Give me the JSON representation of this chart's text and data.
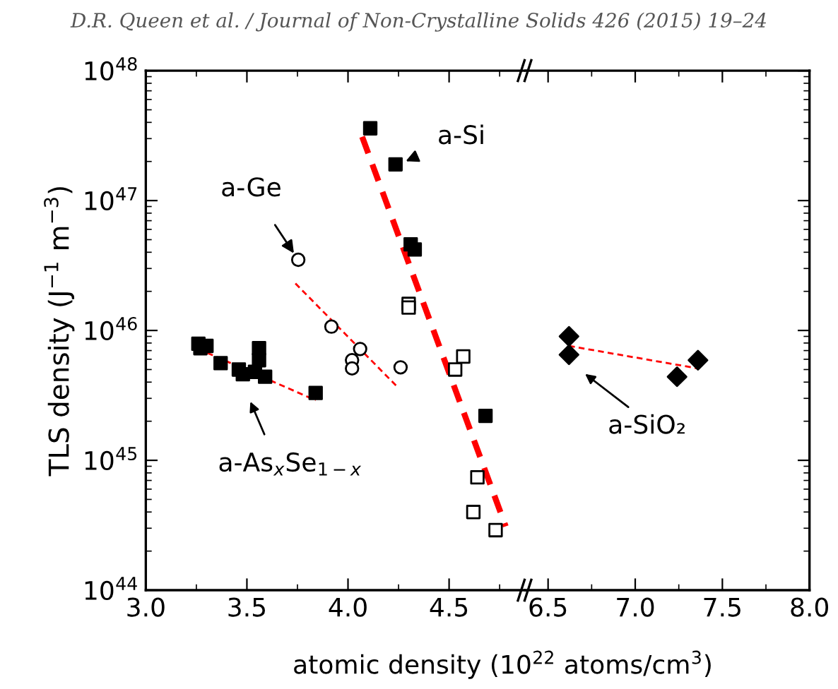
{
  "chart_data": [
    {
      "type": "scatter",
      "log": true,
      "ylabel": "TLS density (J$^{−1}$ m$^{−3}$)",
      "xlabel": "atomic density (10$^{22}$ atoms/cm$^{3}$)",
      "xlim": [
        3.0,
        4.88
      ],
      "xticks": [
        {
          "value": 3.0,
          "label": "3.0"
        },
        3.5,
        {
          "value": 4.0,
          "label": "4.0"
        },
        4.5
      ],
      "ylim": [
        1e+44,
        1e+48
      ],
      "yticks": [
        {
          "value": 1e+44,
          "label": "10$^{44}$"
        },
        {
          "value": 1e+45,
          "label": "10$^{45}$"
        },
        {
          "value": 1e+46,
          "label": "10$^{46}$"
        },
        {
          "value": 1e+47,
          "label": "10$^{47}$"
        },
        {
          "value": 1e+48,
          "label": "10$^{48}$"
        }
      ],
      "series": [
        {
          "marker": "square",
          "color": "#000000",
          "x": [
            4.11,
            4.235,
            4.31,
            4.33,
            4.68
          ],
          "values": [
            3.6e+47,
            1.9e+47,
            4.6e+46,
            4.2e+46,
            2.2e+45
          ]
        },
        {
          "marker": "square",
          "color": "#ffffff",
          "x": [
            4.3,
            4.3,
            4.53,
            4.57,
            4.64,
            4.62,
            4.73
          ],
          "values": [
            1.6e+46,
            1.5e+46,
            5e+45,
            6.3e+45,
            7.4e+44,
            4e+44,
            2.9e+44
          ]
        },
        {
          "marker": "circle",
          "color": "#ffffff",
          "x": [
            3.754,
            3.918,
            4.06,
            4.02,
            4.02,
            4.26
          ],
          "values": [
            3.5e+46,
            1.07e+46,
            7.2e+45,
            5.9e+45,
            5.1e+45,
            5.2e+45
          ]
        },
        {
          "marker": "square",
          "color": "#000000",
          "x": [
            3.26,
            3.27,
            3.3,
            3.37,
            3.46,
            3.48,
            3.56,
            3.56,
            3.54,
            3.59,
            3.84
          ],
          "values": [
            7.9e+45,
            7.3e+45,
            7.6e+45,
            5.6e+45,
            5e+45,
            4.6e+45,
            7.3e+45,
            5.9e+45,
            4.8e+45,
            4.4e+45,
            3.3e+45
          ]
        },
        {
          "type": "line",
          "line_style": "dashed",
          "color": "#ff0000",
          "x": [
            4.07,
            4.78
          ],
          "values": [
            3.1e+47,
            3.1e+44
          ]
        },
        {
          "type": "line",
          "line_style": "dashed",
          "color": "#ff0000",
          "x": [
            3.74,
            4.25
          ],
          "values": [
            2.3e+46,
            3.6e+45
          ]
        },
        {
          "type": "line",
          "line_style": "dashed",
          "color": "#ff0000",
          "x": [
            3.26,
            3.84
          ],
          "values": [
            7.2e+45,
            2.9e+45
          ]
        }
      ],
      "annotations": [
        "D.R. Queen et al. / Journal of Non-Crystalline Solids 426 (2015) 19–24",
        {
          "text": "a-Si",
          "x": 4.25,
          "y": 1.9e+47
        },
        {
          "text": "a-Ge",
          "x": 3.754,
          "y": 3.5e+46
        },
        "a-As$_{x}$Se$_{1−x}$"
      ]
    },
    {
      "type": "scatter",
      "log": true,
      "tick_labels": "x",
      "xlim": [
        6.37,
        8.0
      ],
      "xticks": [
        6.5,
        {
          "value": 7.0,
          "label": "7.0"
        },
        7.5,
        {
          "value": 8.0,
          "label": "8.0"
        }
      ],
      "ylim": [
        1e+44,
        1e+48
      ],
      "yticks": [
        1e+44,
        1e+45,
        1e+46,
        1e+47,
        1e+48
      ],
      "series": [
        {
          "marker": "diamond",
          "color": "#000000",
          "x": [
            6.62,
            6.62,
            7.24,
            7.36
          ],
          "values": [
            9e+45,
            6.5e+45,
            4.4e+45,
            5.9e+45
          ]
        },
        {
          "type": "line",
          "line_style": "dashed",
          "color": "#ff0000",
          "x": [
            6.62,
            7.36
          ],
          "values": [
            7.6e+45,
            5.1e+45
          ]
        }
      ],
      "annotations": [
        "a-SiO₂"
      ]
    }
  ]
}
